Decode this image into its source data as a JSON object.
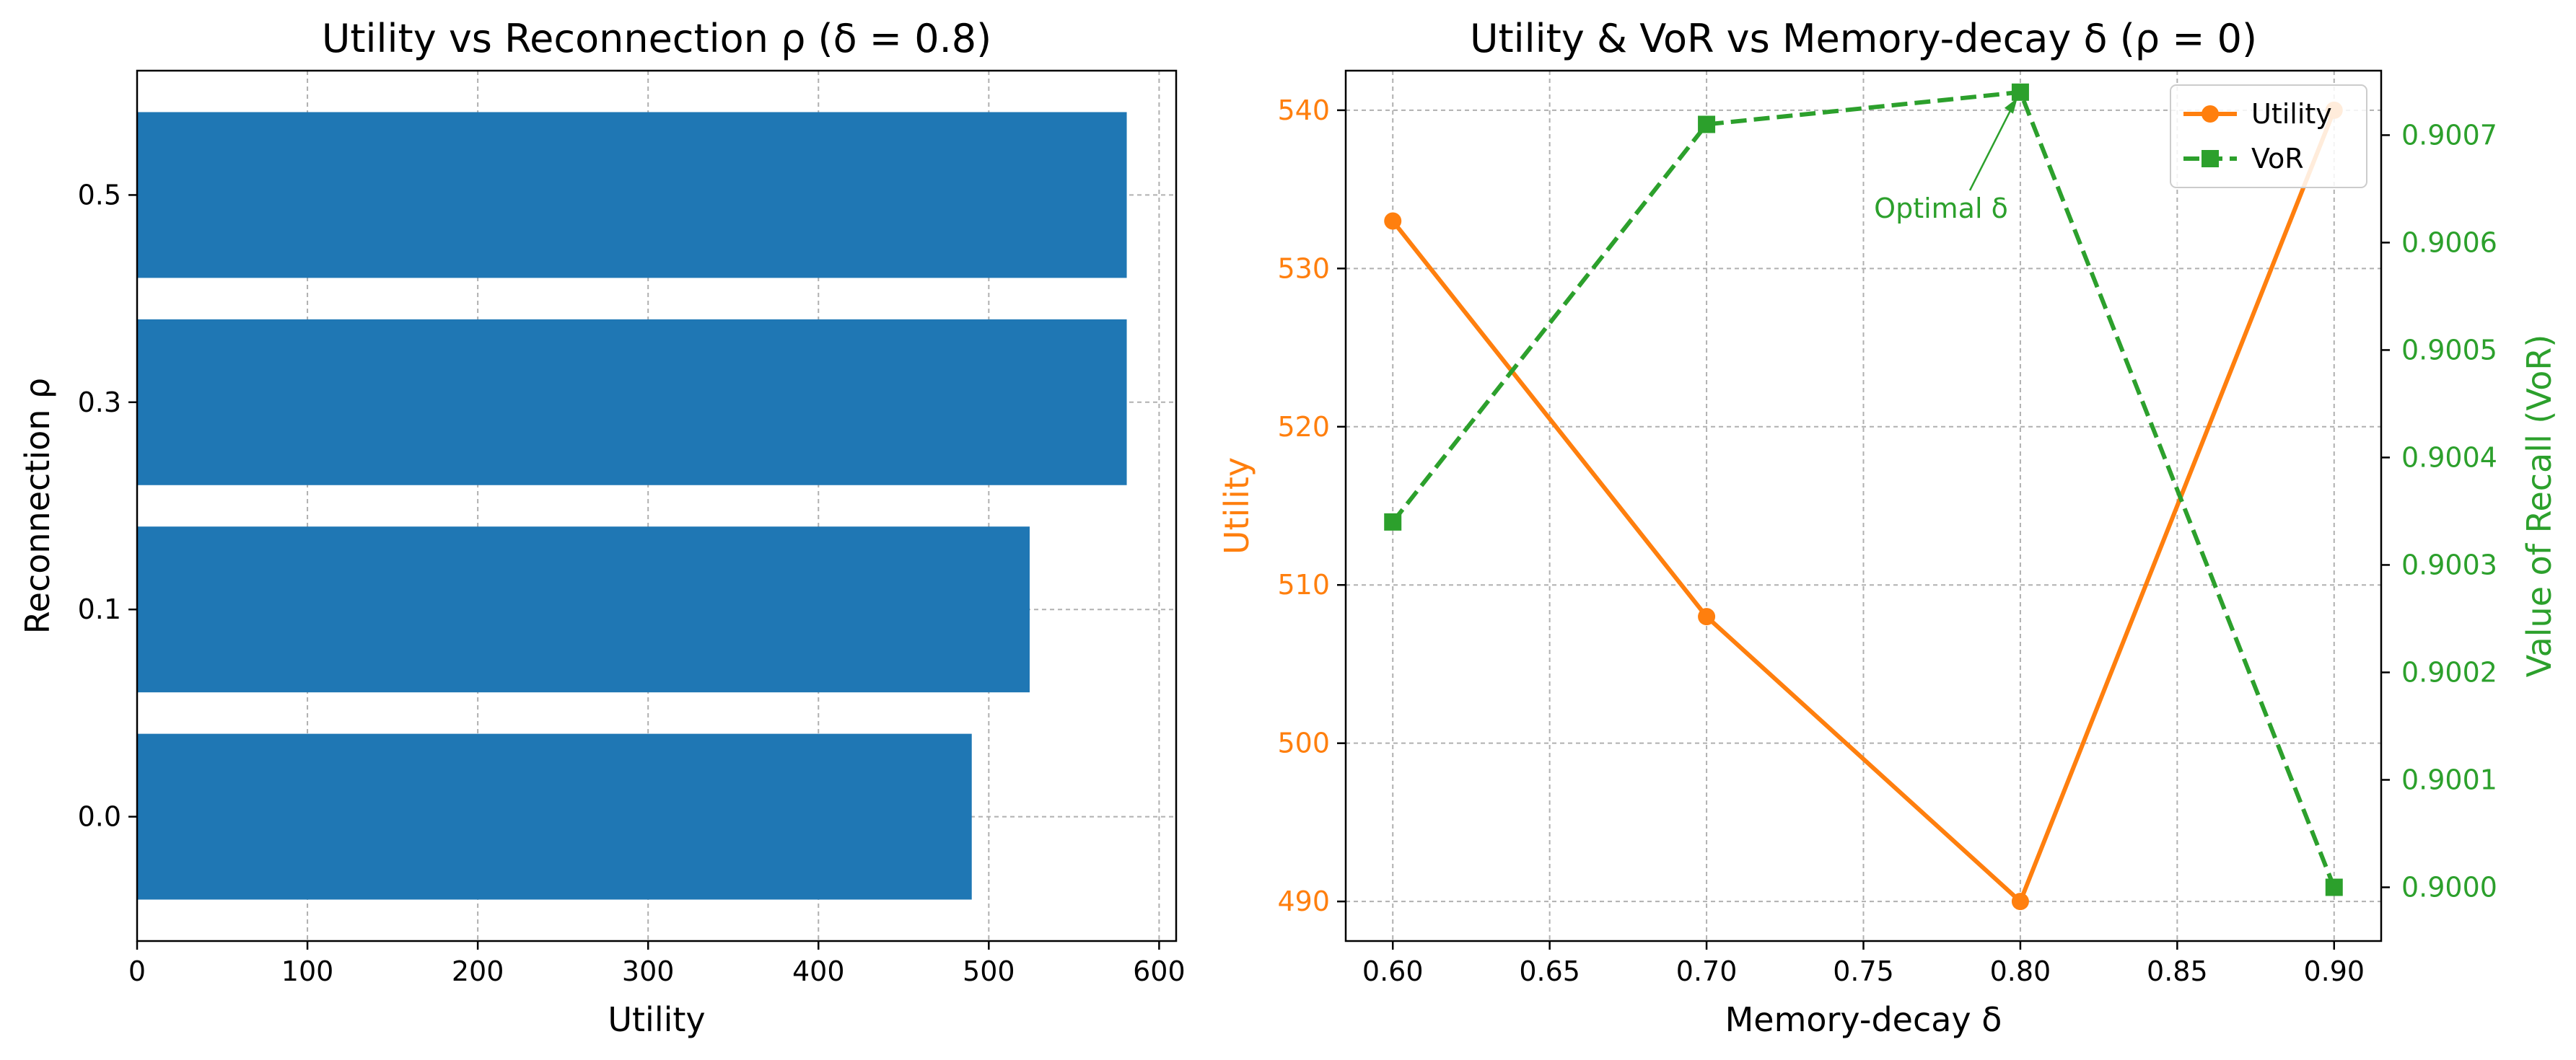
{
  "colors": {
    "bar": "#1f77b4",
    "utility": "#ff7f0e",
    "vor": "#2ca02c",
    "grid": "#b0b0b0",
    "axis": "#000000"
  },
  "chart_data": [
    {
      "type": "bar",
      "orientation": "horizontal",
      "title": "Utility vs Reconnection ρ  (δ = 0.8)",
      "xlabel": "Utility",
      "ylabel": "Reconnection ρ",
      "categories": [
        "0.0",
        "0.1",
        "0.3",
        "0.5"
      ],
      "values": [
        490,
        524,
        581,
        581
      ],
      "xlim": [
        0,
        610
      ],
      "xticks": [
        0,
        100,
        200,
        300,
        400,
        500,
        600
      ],
      "grid": true
    },
    {
      "type": "line",
      "title": "Utility & VoR vs Memory-decay δ  (ρ = 0)",
      "xlabel": "Memory-decay δ",
      "ylabel": "Utility",
      "ylabel_right": "Value of Recall (VoR)",
      "x": [
        0.6,
        0.7,
        0.8,
        0.9
      ],
      "xlim": [
        0.585,
        0.915
      ],
      "xticks": [
        "0.60",
        "0.65",
        "0.70",
        "0.75",
        "0.80",
        "0.85",
        "0.90"
      ],
      "ylim": [
        487.5,
        542.5
      ],
      "yticks": [
        490,
        500,
        510,
        520,
        530,
        540
      ],
      "ylim_right": [
        0.89995,
        0.90076
      ],
      "yticks_right": [
        "0.9000",
        "0.9001",
        "0.9002",
        "0.9003",
        "0.9004",
        "0.9005",
        "0.9006",
        "0.9007"
      ],
      "series": [
        {
          "name": "Utility",
          "axis": "left",
          "marker": "circle",
          "style": "solid",
          "values": [
            533,
            508,
            490,
            540
          ]
        },
        {
          "name": "VoR",
          "axis": "right",
          "marker": "square",
          "style": "dashed",
          "values": [
            0.90034,
            0.90071,
            0.90074,
            0.9
          ]
        }
      ],
      "annotation": {
        "text": "Optimal δ",
        "x": 0.8,
        "y": 0.90074
      },
      "legend": "top-right",
      "grid": true
    }
  ]
}
